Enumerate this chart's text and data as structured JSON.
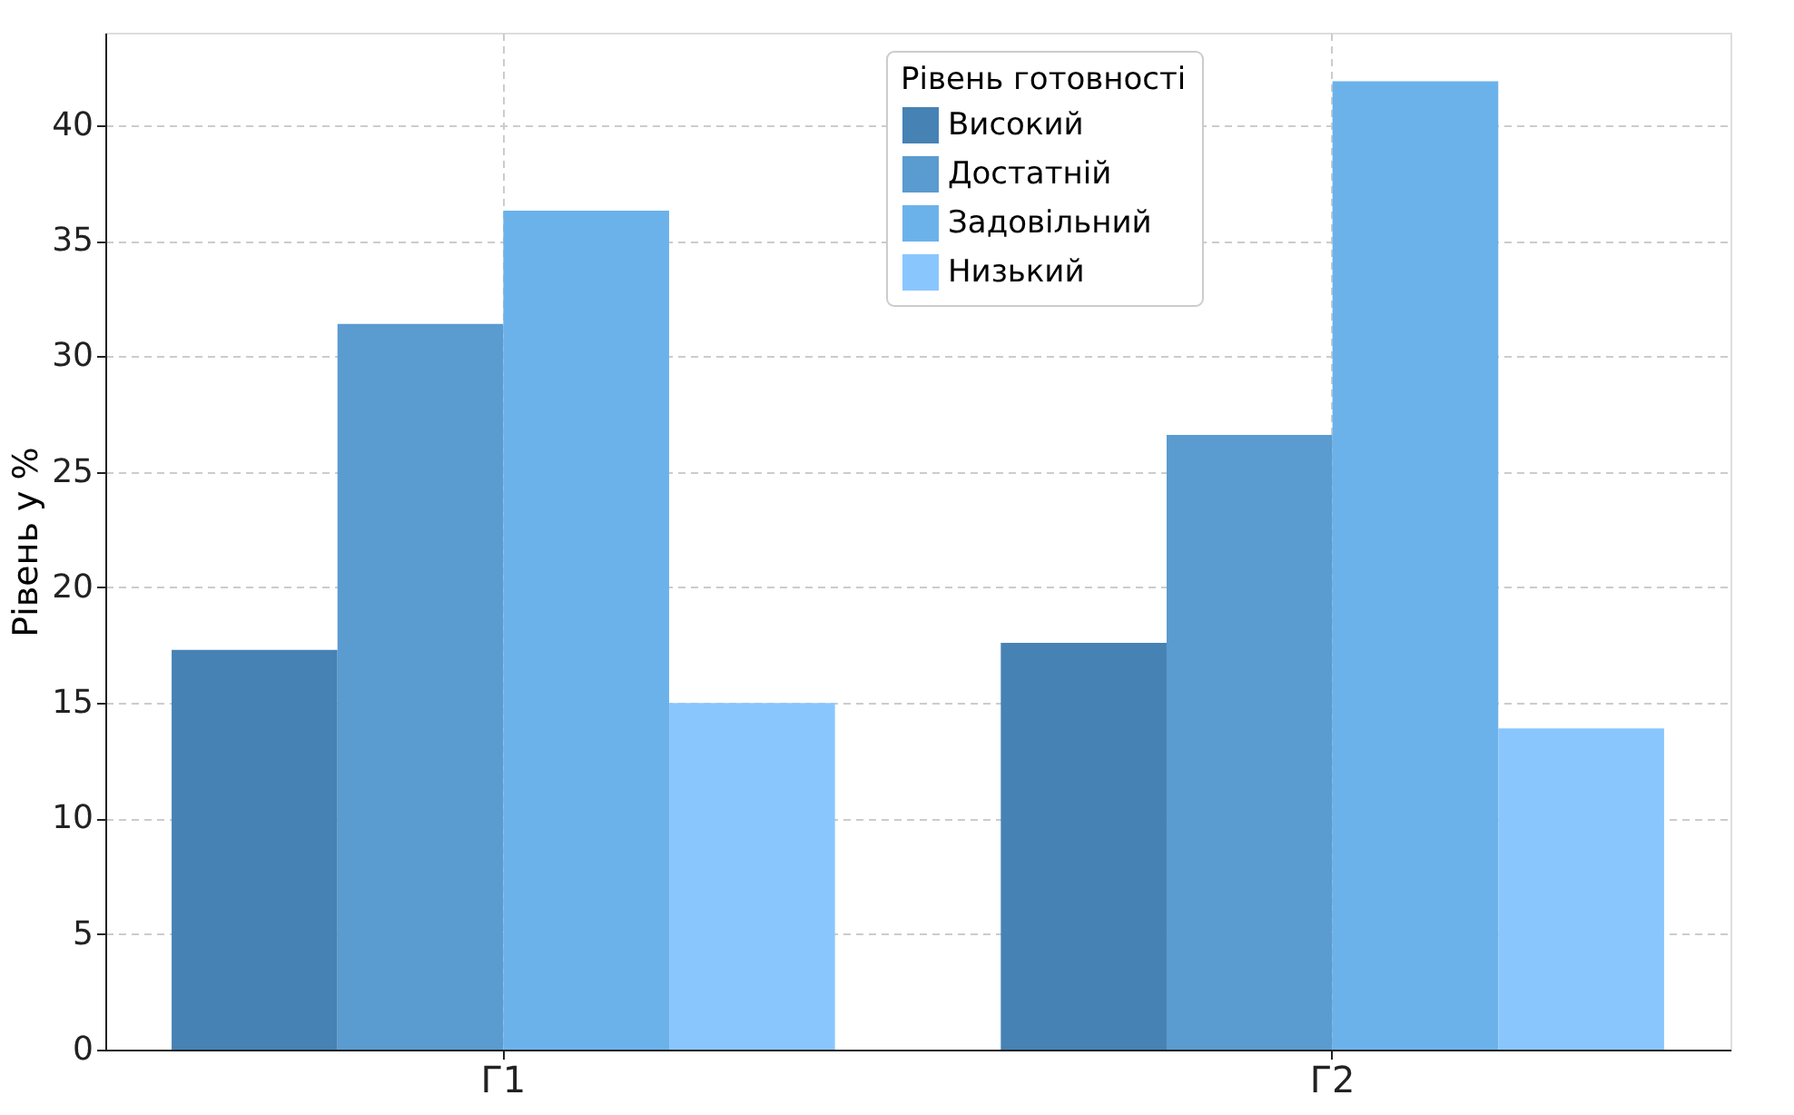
{
  "chart_data": {
    "type": "bar",
    "ylabel": "Рівень у %",
    "legend_title": "Рівень готовності",
    "categories": [
      "Г1",
      "Г2"
    ],
    "series": [
      {
        "name": "Високий",
        "color": "#4682b4",
        "values": [
          17.3,
          17.6
        ]
      },
      {
        "name": "Достатній",
        "color": "#5a9bd0",
        "values": [
          31.4,
          26.6
        ]
      },
      {
        "name": "Задовільний",
        "color": "#6cb2ea",
        "values": [
          36.3,
          41.9
        ]
      },
      {
        "name": "Низький",
        "color": "#8ac6fe",
        "values": [
          15.0,
          13.9
        ]
      }
    ],
    "ylim": [
      0,
      44
    ],
    "yticks": [
      0,
      5,
      10,
      15,
      20,
      25,
      30,
      35,
      40
    ],
    "grid": true,
    "legend": "top"
  }
}
